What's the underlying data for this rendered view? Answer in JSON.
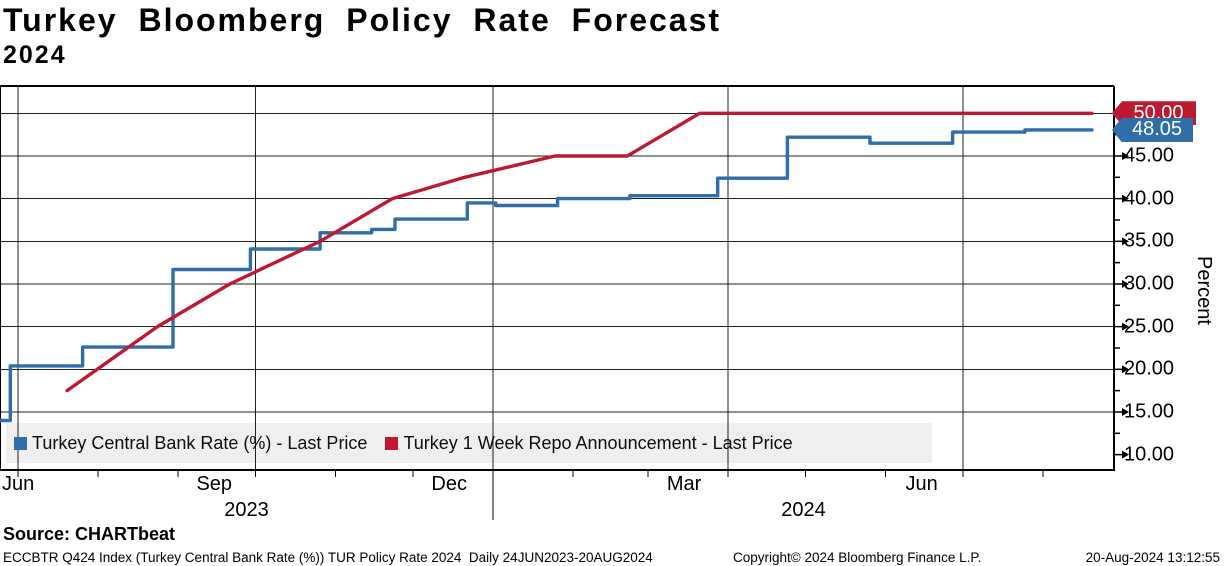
{
  "header": {
    "title": "Turkey Bloomberg Policy Rate Forecast",
    "subtitle": "2024"
  },
  "source_line": "Source: CHARTbeat",
  "footer": {
    "left": "ECCBTR Q424 Index (Turkey Central Bank Rate (%)) TUR Policy Rate 2024  Daily 24JUN2023-20AUG2024",
    "copyright": "Copyright© 2024 Bloomberg Finance L.P.",
    "timestamp": "20-Aug-2024 13:12:55"
  },
  "chart_data": {
    "type": "line",
    "title": "Turkey Bloomberg Policy Rate Forecast 2024",
    "xlabel": "",
    "ylabel": "Percent",
    "ylim": [
      8.2,
      53.2
    ],
    "x_range": [
      "2023-06-24",
      "2024-08-20"
    ],
    "grid": true,
    "legend_position": "bottom-inside",
    "colors": {
      "blue_series": "#2f6ea8",
      "red_series": "#bf1932",
      "legend_bg": "#efefef",
      "gridline": "#1f1f1f",
      "axis": "#000000"
    },
    "yticks": [
      {
        "value": 10,
        "label": "10.00"
      },
      {
        "value": 15,
        "label": "15.00"
      },
      {
        "value": 20,
        "label": "20.00"
      },
      {
        "value": 25,
        "label": "25.00"
      },
      {
        "value": 30,
        "label": "30.00"
      },
      {
        "value": 35,
        "label": "35.00"
      },
      {
        "value": 40,
        "label": "40.00"
      },
      {
        "value": 45,
        "label": "45.00"
      }
    ],
    "y_minor_ticks": [
      12.5,
      17.5,
      22.5,
      27.5,
      32.5,
      37.5,
      42.5,
      47.5
    ],
    "y_gridline_values": [
      15,
      20,
      25,
      30,
      35,
      40,
      45,
      50
    ],
    "x_quarter_gridlines": [
      "2023-07-01",
      "2023-10-01",
      "2024-01-01",
      "2024-04-01",
      "2024-07-01"
    ],
    "x_month_labels": [
      {
        "text": "Jun",
        "date": "2023-06-15",
        "align": "left"
      },
      {
        "text": "Sep",
        "date": "2023-09-15",
        "align": "center"
      },
      {
        "text": "Dec",
        "date": "2023-12-15",
        "align": "center"
      },
      {
        "text": "Mar",
        "date": "2024-03-15",
        "align": "center"
      },
      {
        "text": "Jun",
        "date": "2024-06-15",
        "align": "center"
      }
    ],
    "year_labels": [
      {
        "text": "2023",
        "span": [
          "2023-06-24",
          "2024-01-01"
        ]
      },
      {
        "text": "2024",
        "span": [
          "2024-01-01",
          "2024-08-20"
        ]
      }
    ],
    "series": [
      {
        "name": "Turkey Central Bank Rate (%) - Last Price",
        "color": "#2f6ea8",
        "style": "step",
        "last_price": "48.05",
        "points": [
          {
            "date": "2023-06-24",
            "value": 14.0
          },
          {
            "date": "2023-06-28",
            "value": 20.4
          },
          {
            "date": "2023-07-26",
            "value": 22.6
          },
          {
            "date": "2023-08-30",
            "value": 31.7
          },
          {
            "date": "2023-09-29",
            "value": 34.1
          },
          {
            "date": "2023-10-26",
            "value": 36.0
          },
          {
            "date": "2023-11-15",
            "value": 36.4
          },
          {
            "date": "2023-11-24",
            "value": 37.6
          },
          {
            "date": "2023-12-22",
            "value": 39.5
          },
          {
            "date": "2024-01-02",
            "value": 39.2
          },
          {
            "date": "2024-01-26",
            "value": 40.0
          },
          {
            "date": "2024-02-23",
            "value": 40.35
          },
          {
            "date": "2024-03-28",
            "value": 42.4
          },
          {
            "date": "2024-04-24",
            "value": 47.2
          },
          {
            "date": "2024-05-26",
            "value": 46.5
          },
          {
            "date": "2024-06-27",
            "value": 47.8
          },
          {
            "date": "2024-07-25",
            "value": 48.05
          },
          {
            "date": "2024-08-20",
            "value": 48.05
          }
        ]
      },
      {
        "name": "Turkey 1 Week Repo Announcement - Last Price",
        "color": "#bf1932",
        "style": "linear",
        "last_price": "50.00",
        "points": [
          {
            "date": "2023-07-20",
            "value": 17.5
          },
          {
            "date": "2023-08-24",
            "value": 25.0
          },
          {
            "date": "2023-09-21",
            "value": 30.0
          },
          {
            "date": "2023-10-26",
            "value": 35.0
          },
          {
            "date": "2023-11-23",
            "value": 40.0
          },
          {
            "date": "2023-12-21",
            "value": 42.5
          },
          {
            "date": "2024-01-25",
            "value": 45.0
          },
          {
            "date": "2024-02-22",
            "value": 45.0
          },
          {
            "date": "2024-03-21",
            "value": 50.0
          },
          {
            "date": "2024-08-20",
            "value": 50.0
          }
        ]
      }
    ]
  }
}
